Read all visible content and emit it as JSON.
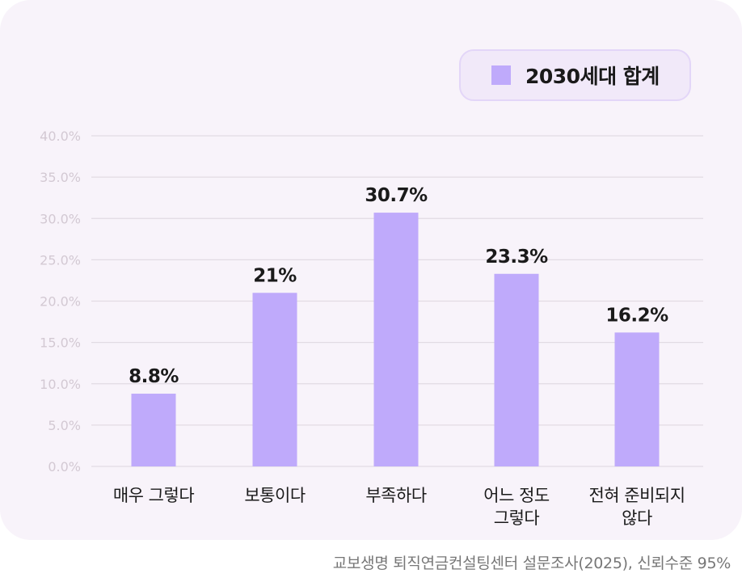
{
  "chart_data": {
    "type": "bar",
    "categories": [
      [
        "매우 그렇다"
      ],
      [
        "보통이다"
      ],
      [
        "부족하다"
      ],
      [
        "어느 정도",
        "그렇다"
      ],
      [
        "전혀 준비되지",
        "않다"
      ]
    ],
    "series": [
      {
        "name": "2030세대 합계",
        "values": [
          8.8,
          21,
          30.7,
          23.3,
          16.2
        ]
      }
    ],
    "data_labels": [
      "8.8%",
      "21%",
      "30.7%",
      "23.3%",
      "16.2%"
    ],
    "yticks": [
      "0.0%",
      "5.0%",
      "10.0%",
      "15.0%",
      "20.0%",
      "25.0%",
      "30.0%",
      "35.0%",
      "40.0%"
    ],
    "ylim": [
      0,
      40
    ],
    "grid": true,
    "legend": "top-right",
    "colors": {
      "bar": "#bfaafb",
      "grid": "#e2dbe3",
      "tick": "#d3c9d3",
      "background": "#f8f3fa"
    }
  },
  "legend_label": "2030세대 합계",
  "source": "교보생명 퇴직연금컨설팅센터 설문조사(2025), 신뢰수준 95%"
}
